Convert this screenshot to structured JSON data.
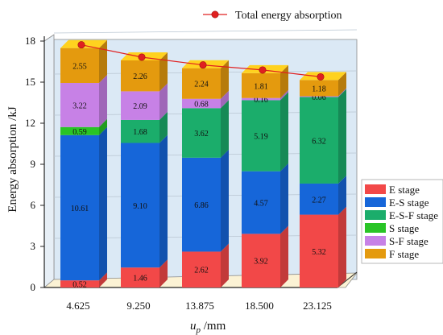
{
  "chart_data": {
    "type": "bar",
    "stacked": true,
    "view": "3d",
    "title": "",
    "xlabel": "mm",
    "xlabel_var": "u",
    "xlabel_sub": "p",
    "ylabel": "Energy absorption /kJ",
    "ylim": [
      0,
      18
    ],
    "yticks": [
      "0",
      "3",
      "6",
      "9",
      "12",
      "15",
      "18"
    ],
    "categories": [
      "4.625",
      "9.250",
      "13.875",
      "18.500",
      "23.125"
    ],
    "grid": true,
    "legend_position": "right",
    "series": [
      {
        "name": "E stage",
        "color": "#f24848",
        "values": [
          0.52,
          1.46,
          2.62,
          3.92,
          5.32
        ],
        "labels": [
          "0.52",
          "1.46",
          "2.62",
          "3.92",
          "5.32"
        ]
      },
      {
        "name": "E-S stage",
        "color": "#1666d9",
        "values": [
          10.61,
          9.1,
          6.86,
          4.57,
          2.27
        ],
        "labels": [
          "10.61",
          "9.10",
          "6.86",
          "4.57",
          "2.27"
        ]
      },
      {
        "name": "E-S-F stage",
        "color": "#1bad6b",
        "values": [
          0,
          1.68,
          3.62,
          5.19,
          6.32
        ],
        "labels": [
          "",
          "1.68",
          "3.62",
          "5.19",
          "6.32"
        ]
      },
      {
        "name": "S stage",
        "color": "#29c426",
        "values": [
          0.59,
          0,
          0,
          0,
          0
        ],
        "labels": [
          "0.59",
          "",
          "",
          "",
          ""
        ]
      },
      {
        "name": "S-F stage",
        "color": "#c781e6",
        "values": [
          3.22,
          2.09,
          0.68,
          0.16,
          0.06
        ],
        "labels": [
          "3.22",
          "2.09",
          "0.68",
          "0.16",
          "0.06"
        ]
      },
      {
        "name": "F stage",
        "color": "#e49a0e",
        "values": [
          2.55,
          2.26,
          2.24,
          1.81,
          1.18
        ],
        "labels": [
          "2.55",
          "2.26",
          "2.24",
          "1.81",
          "1.18"
        ]
      }
    ],
    "total_series": {
      "name": "Total energy absorption",
      "color": "#e02020",
      "values": [
        17.49,
        16.59,
        16.02,
        15.65,
        15.15
      ]
    }
  }
}
